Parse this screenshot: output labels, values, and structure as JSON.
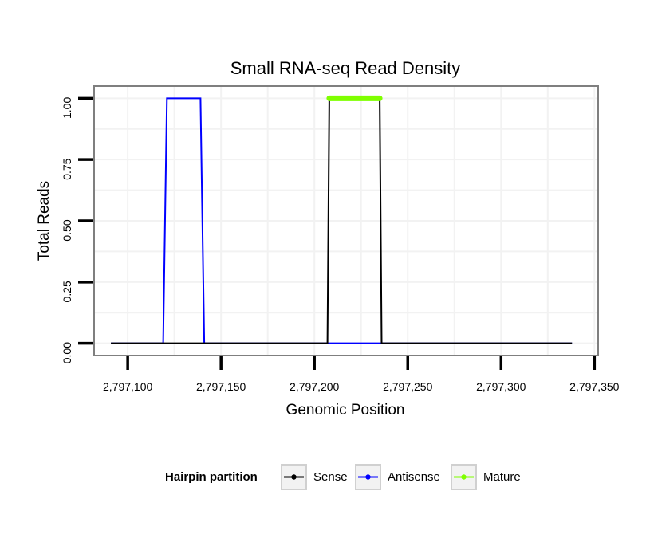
{
  "chart_data": {
    "type": "line",
    "title": "Small RNA-seq Read Density",
    "xlabel": "Genomic Position",
    "ylabel": "Total Reads",
    "xlim": [
      2797082,
      2797352
    ],
    "ylim": [
      -0.05,
      1.05
    ],
    "x_ticks": [
      2797100,
      2797150,
      2797200,
      2797250,
      2797300,
      2797350
    ],
    "x_tick_labels": [
      "2,797,100",
      "2,797,150",
      "2,797,200",
      "2,797,250",
      "2,797,300",
      "2,797,350"
    ],
    "y_ticks": [
      0,
      0.25,
      0.5,
      0.75,
      1.0
    ],
    "y_tick_labels": [
      "0.00",
      "0.25",
      "0.50",
      "0.75",
      "1.00"
    ],
    "grid": true,
    "legend_title": "Hairpin partition",
    "legend_position": "bottom",
    "series": [
      {
        "name": "Antisense",
        "color": "#0000ff",
        "x": [
          2797091,
          2797119,
          2797121,
          2797139,
          2797141,
          2797338
        ],
        "y": [
          0,
          0,
          1,
          1,
          0,
          0
        ]
      },
      {
        "name": "Sense",
        "color": "#000000",
        "x": [
          2797091,
          2797207,
          2797208,
          2797235,
          2797236,
          2797338
        ],
        "y": [
          0,
          0,
          1,
          1,
          0,
          0
        ]
      },
      {
        "name": "Mature",
        "color": "#7fff00",
        "x": [
          2797208,
          2797235
        ],
        "y": [
          1,
          1
        ]
      }
    ],
    "legend_order": [
      "Sense",
      "Antisense",
      "Mature"
    ]
  }
}
